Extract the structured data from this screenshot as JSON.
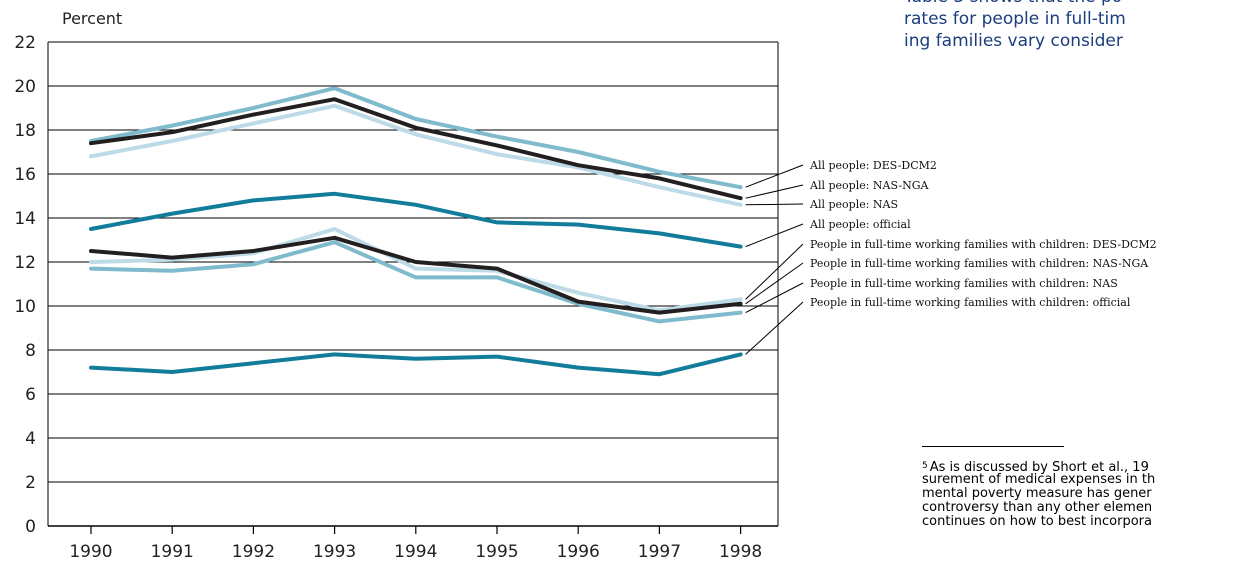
{
  "text_column": {
    "lines": [
      "Table 3 shows that the po",
      "rates for people in full-tim",
      "ing families vary consider"
    ]
  },
  "footnote": {
    "number": "5",
    "lines": [
      "As is discussed by Short et al., 19",
      "surement of medical expenses in th",
      "mental poverty measure has gener",
      "controversy than any other elemen",
      "continues on how to best incorpora"
    ]
  },
  "chart_data": {
    "type": "line",
    "ylabel": "Percent",
    "xlabel": "",
    "x": [
      "1990",
      "1991",
      "1992",
      "1993",
      "1994",
      "1995",
      "1996",
      "1997",
      "1998"
    ],
    "ylim": [
      0,
      22
    ],
    "yticks": [
      0,
      2,
      4,
      6,
      8,
      10,
      12,
      14,
      16,
      18,
      20,
      22
    ],
    "grid": true,
    "legend": "right, with leader lines to series ends",
    "series": [
      {
        "name": "All people: DES-DCM2",
        "color": "#7fbacd",
        "values": [
          17.5,
          18.2,
          19.0,
          19.9,
          18.5,
          17.7,
          17.0,
          16.1,
          15.4
        ]
      },
      {
        "name": "All people: NAS-NGA",
        "color": "#231f20",
        "values": [
          17.4,
          17.9,
          18.7,
          19.4,
          18.1,
          17.3,
          16.4,
          15.8,
          14.9
        ]
      },
      {
        "name": "All people: NAS",
        "color": "#bcdbe6",
        "values": [
          16.8,
          17.5,
          18.3,
          19.1,
          17.8,
          16.9,
          16.3,
          15.4,
          14.6
        ]
      },
      {
        "name": "All people: official",
        "color": "#127c9b",
        "values": [
          13.5,
          14.2,
          14.8,
          15.1,
          14.6,
          13.8,
          13.7,
          13.3,
          12.7
        ]
      },
      {
        "name": "People in full-time working families with children: DES-DCM2",
        "color": "#bcdbe6",
        "values": [
          12.0,
          12.1,
          12.4,
          13.5,
          11.7,
          11.6,
          10.6,
          9.8,
          10.3
        ]
      },
      {
        "name": "People in full-time working families with children: NAS-NGA",
        "color": "#231f20",
        "values": [
          12.5,
          12.2,
          12.5,
          13.1,
          12.0,
          11.7,
          10.2,
          9.7,
          10.1
        ]
      },
      {
        "name": "People in full-time working families with children: NAS",
        "color": "#7fbacd",
        "values": [
          11.7,
          11.6,
          11.9,
          12.9,
          11.3,
          11.3,
          10.1,
          9.3,
          9.7
        ]
      },
      {
        "name": "People in full-time working families with children: official",
        "color": "#127c9b",
        "values": [
          7.2,
          7.0,
          7.4,
          7.8,
          7.6,
          7.7,
          7.2,
          6.9,
          7.8
        ]
      }
    ]
  }
}
